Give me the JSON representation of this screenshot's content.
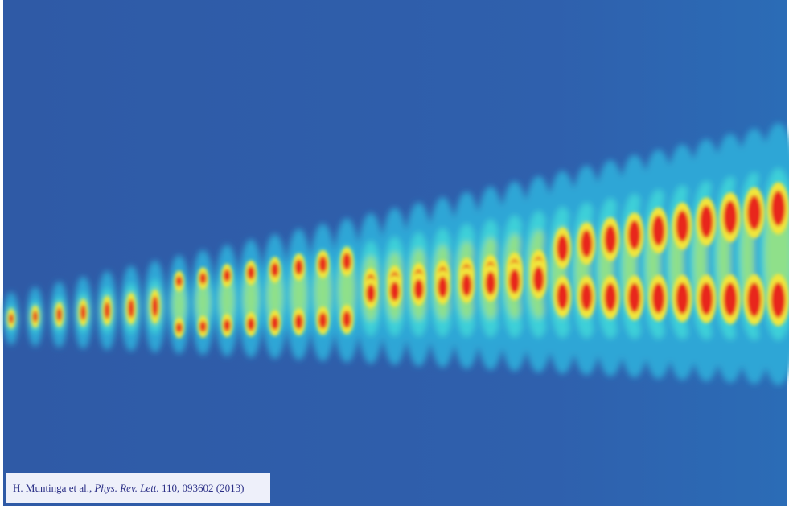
{
  "caption": {
    "authors": "H. Muntinga et al.,",
    "journal": "Phys. Rev. Lett.",
    "reference": "110, 093602 (2013)"
  }
}
